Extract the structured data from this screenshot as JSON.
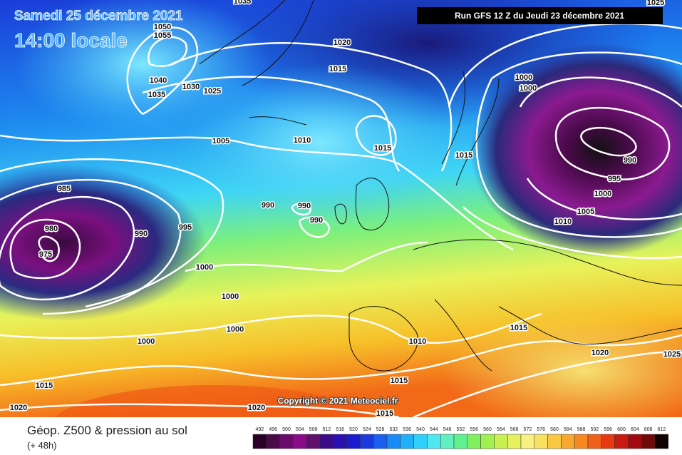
{
  "header": {
    "date": "Samedi 25 décembre 2021",
    "time": "14:00 locale",
    "run": "Run GFS 12 Z du Jeudi 23 décembre 2021"
  },
  "isobar_labels": [
    "1035",
    "1025",
    "1050",
    "1055",
    "1020",
    "1015",
    "1040",
    "1035",
    "1030",
    "1025",
    "1000",
    "1000",
    "1005",
    "1010",
    "1015",
    "1015",
    "990",
    "995",
    "985",
    "1000",
    "990",
    "990",
    "1005",
    "990",
    "1010",
    "980",
    "990",
    "995",
    "975",
    "1000",
    "1000",
    "1000",
    "1015",
    "1010",
    "1000",
    "1020",
    "1025",
    "1015",
    "1015",
    "1020",
    "1020",
    "1015"
  ],
  "copyright": "Copyright © 2021 Meteociel.fr",
  "legend": {
    "title": "Géop. Z500 & pression au sol",
    "subtitle": "(+ 48h)",
    "scale": [
      492,
      496,
      500,
      504,
      508,
      512,
      516,
      520,
      524,
      528,
      532,
      536,
      540,
      544,
      548,
      552,
      556,
      560,
      564,
      568,
      572,
      576,
      580,
      584,
      588,
      592,
      596,
      600,
      604,
      608,
      612
    ]
  }
}
